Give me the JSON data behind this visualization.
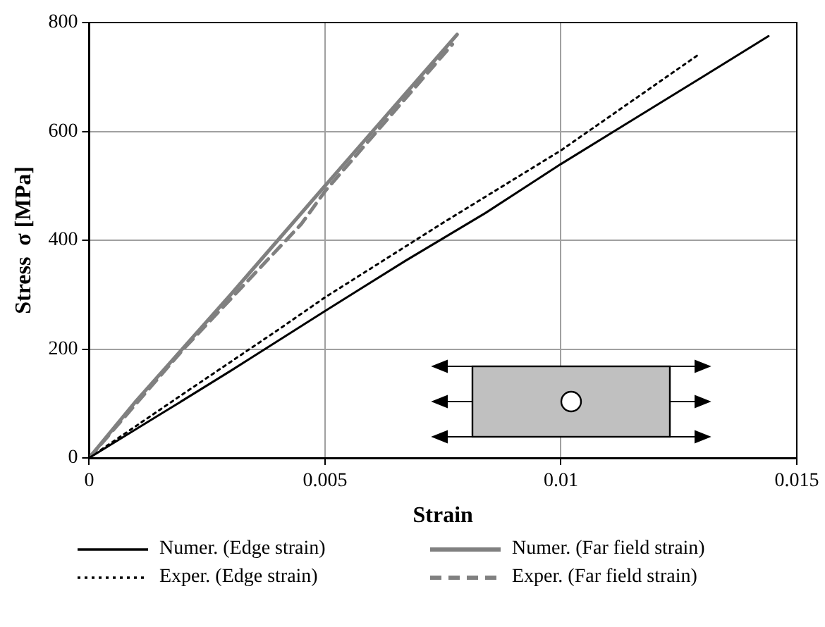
{
  "chart_data": {
    "type": "line",
    "xlabel": "Strain",
    "ylabel": "Stress  σ [MPa]",
    "xlim": [
      0,
      0.015
    ],
    "xticks": [
      0,
      0.005,
      0.01,
      0.015
    ],
    "ylim": [
      0,
      800
    ],
    "yticks": [
      0,
      200,
      400,
      600,
      800
    ],
    "grid": true,
    "legend": "bottom",
    "marker": "none",
    "series": [
      {
        "name": "Numer. (Edge strain)",
        "color": "#000000",
        "line_style": "solid",
        "x": [
          0,
          0.0016,
          0.003,
          0.005,
          0.0067,
          0.0084,
          0.01,
          0.0115,
          0.013,
          0.0144
        ],
        "values": [
          0,
          85,
          160,
          270,
          362,
          450,
          540,
          620,
          700,
          775
        ]
      },
      {
        "name": "Numer. (Far field strain)",
        "color": "#808080",
        "line_style": "solid",
        "x": [
          0,
          0.001,
          0.003,
          0.005,
          0.0078
        ],
        "values": [
          0,
          105,
          300,
          500,
          778
        ]
      },
      {
        "name": "Exper. (Edge strain)",
        "color": "#000000",
        "line_style": "dotted",
        "x": [
          0,
          0.002,
          0.004,
          0.005,
          0.0075,
          0.01,
          0.0129
        ],
        "values": [
          0,
          118,
          235,
          295,
          432,
          565,
          740
        ]
      },
      {
        "name": "Exper. (Far field strain)",
        "color": "#808080",
        "line_style": "dashed",
        "x": [
          0,
          0.002,
          0.0045,
          0.005,
          0.0077
        ],
        "values": [
          0,
          200,
          430,
          490,
          760
        ]
      }
    ]
  }
}
